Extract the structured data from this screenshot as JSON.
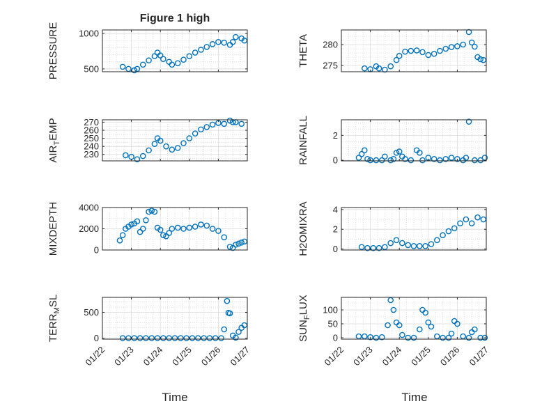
{
  "figure": {
    "title": "Figure 1 high"
  },
  "chart_data": [
    {
      "type": "scatter",
      "ylabel": "PRESSURE",
      "xlim": [
        "01/22",
        "01/27"
      ],
      "xtick_labels": [
        "01/22",
        "01/23",
        "01/24",
        "01/25",
        "01/26",
        "01/27"
      ],
      "ylim": [
        460,
        1050
      ],
      "yticks": [
        500,
        1000
      ],
      "ytick_labels": [
        "500",
        "1000"
      ],
      "minor_yticks": [
        600,
        700,
        800,
        900
      ],
      "grid": true,
      "marker_color": "#0072BD",
      "series": [
        {
          "x": [
            0.7,
            0.9,
            1.1,
            1.2,
            1.4,
            1.6,
            1.8,
            1.9,
            2.0,
            2.1,
            2.3,
            2.4,
            2.6,
            2.8,
            3.0,
            3.2,
            3.4,
            3.6,
            3.8,
            4.0,
            4.2,
            4.4,
            4.5,
            4.6,
            4.8,
            4.9
          ],
          "y": [
            530,
            500,
            480,
            500,
            560,
            620,
            680,
            730,
            690,
            640,
            600,
            560,
            580,
            630,
            680,
            730,
            770,
            810,
            850,
            880,
            870,
            840,
            880,
            950,
            930,
            900
          ]
        }
      ]
    },
    {
      "type": "scatter",
      "ylabel": "THETA",
      "xlim": [
        "01/22",
        "01/27"
      ],
      "xtick_labels": [
        "01/22",
        "01/23",
        "01/24",
        "01/25",
        "01/26",
        "01/27"
      ],
      "ylim": [
        273.5,
        283.5
      ],
      "yticks": [
        275,
        280
      ],
      "ytick_labels": [
        "275",
        "280"
      ],
      "minor_yticks": [
        276,
        277,
        278,
        279,
        281,
        282
      ],
      "grid": true,
      "marker_color": "#0072BD",
      "series": [
        {
          "x": [
            0.8,
            1.0,
            1.2,
            1.3,
            1.5,
            1.7,
            1.9,
            2.0,
            2.2,
            2.4,
            2.6,
            2.8,
            3.0,
            3.2,
            3.4,
            3.6,
            3.8,
            4.0,
            4.2,
            4.4,
            4.5,
            4.6,
            4.7,
            4.8,
            4.9
          ],
          "y": [
            274.3,
            274.1,
            274.8,
            274.3,
            274.0,
            274.8,
            276.3,
            277.3,
            278.3,
            278.5,
            278.6,
            278.2,
            277.5,
            277.8,
            278.5,
            279.0,
            279.4,
            279.6,
            280.0,
            283.0,
            280.5,
            279.5,
            277.0,
            276.5,
            276.3
          ]
        }
      ]
    },
    {
      "type": "scatter",
      "ylabel": "AIR_TEMP",
      "ylabel_display": {
        "base": "AIR",
        "sub": "T",
        "rest": "EMP"
      },
      "xlim": [
        "01/22",
        "01/27"
      ],
      "xtick_labels": [
        "01/22",
        "01/23",
        "01/24",
        "01/25",
        "01/26",
        "01/27"
      ],
      "ylim": [
        222,
        273
      ],
      "yticks": [
        230,
        240,
        250,
        260,
        270
      ],
      "ytick_labels": [
        "230",
        "240",
        "250",
        "260",
        "270"
      ],
      "minor_yticks": [
        225,
        235,
        245,
        255,
        265
      ],
      "grid": true,
      "marker_color": "#0072BD",
      "series": [
        {
          "x": [
            0.8,
            1.0,
            1.2,
            1.4,
            1.6,
            1.8,
            1.9,
            2.0,
            2.2,
            2.4,
            2.6,
            2.8,
            3.0,
            3.2,
            3.4,
            3.6,
            3.8,
            4.0,
            4.2,
            4.4,
            4.5,
            4.6,
            4.8
          ],
          "y": [
            229,
            227,
            224,
            228,
            235,
            243,
            250,
            247,
            240,
            236,
            238,
            244,
            250,
            256,
            261,
            264,
            267,
            269,
            268,
            272,
            270,
            270,
            268
          ]
        }
      ]
    },
    {
      "type": "scatter",
      "ylabel": "RAINFALL",
      "xlim": [
        "01/22",
        "01/27"
      ],
      "xtick_labels": [
        "01/22",
        "01/23",
        "01/24",
        "01/25",
        "01/26",
        "01/27"
      ],
      "ylim": [
        -0.05,
        3.25
      ],
      "yticks": [
        0,
        2
      ],
      "ytick_labels": [
        "0",
        "2"
      ],
      "minor_yticks": [
        0.5,
        1.0,
        1.5,
        2.5,
        3.0
      ],
      "grid": true,
      "marker_color": "#0072BD",
      "series": [
        {
          "x": [
            0.6,
            0.7,
            0.8,
            0.9,
            1.0,
            1.2,
            1.4,
            1.5,
            1.7,
            1.8,
            1.9,
            2.0,
            2.1,
            2.2,
            2.4,
            2.6,
            2.7,
            2.8,
            3.0,
            3.2,
            3.4,
            3.6,
            3.8,
            4.0,
            4.2,
            4.3,
            4.4,
            4.6,
            4.8,
            4.95
          ],
          "y": [
            0.2,
            0.5,
            0.8,
            0.1,
            0.0,
            0.0,
            0.0,
            0.3,
            0.0,
            0.1,
            0.6,
            0.7,
            0.3,
            0.1,
            0.0,
            0.8,
            0.6,
            0.0,
            0.2,
            0.1,
            0.0,
            0.1,
            0.2,
            0.1,
            0.0,
            0.2,
            3.1,
            0.0,
            0.0,
            0.2
          ]
        }
      ]
    },
    {
      "type": "scatter",
      "ylabel": "MIXDEPTH",
      "xlim": [
        "01/22",
        "01/27"
      ],
      "xtick_labels": [
        "01/22",
        "01/23",
        "01/24",
        "01/25",
        "01/26",
        "01/27"
      ],
      "ylim": [
        0,
        4000
      ],
      "yticks": [
        0,
        2000,
        4000
      ],
      "ytick_labels": [
        "0",
        "2000",
        "4000"
      ],
      "minor_yticks": [
        1000,
        3000
      ],
      "grid": true,
      "marker_color": "#0072BD",
      "series": [
        {
          "x": [
            0.6,
            0.7,
            0.8,
            0.9,
            1.0,
            1.1,
            1.2,
            1.3,
            1.4,
            1.5,
            1.6,
            1.7,
            1.8,
            1.9,
            2.0,
            2.1,
            2.2,
            2.3,
            2.4,
            2.6,
            2.8,
            3.0,
            3.2,
            3.4,
            3.6,
            3.8,
            4.0,
            4.2,
            4.4,
            4.5,
            4.6,
            4.7,
            4.8,
            4.9
          ],
          "y": [
            900,
            1400,
            2000,
            2200,
            2400,
            2500,
            2700,
            1700,
            2000,
            2800,
            3600,
            3700,
            3600,
            2100,
            1900,
            1400,
            1300,
            1600,
            2000,
            2100,
            2000,
            2100,
            2200,
            2400,
            2300,
            2000,
            1800,
            1200,
            300,
            200,
            500,
            600,
            700,
            800
          ]
        }
      ]
    },
    {
      "type": "scatter",
      "ylabel": "H2OMIXRA",
      "xlim": [
        "01/22",
        "01/27"
      ],
      "xtick_labels": [
        "01/22",
        "01/23",
        "01/24",
        "01/25",
        "01/26",
        "01/27"
      ],
      "ylim": [
        -0.1,
        4.2
      ],
      "yticks": [
        0,
        2,
        4
      ],
      "ytick_labels": [
        "0",
        "2",
        "4"
      ],
      "minor_yticks": [
        1,
        3
      ],
      "grid": true,
      "marker_color": "#0072BD",
      "series": [
        {
          "x": [
            0.7,
            0.9,
            1.1,
            1.3,
            1.5,
            1.7,
            1.9,
            2.1,
            2.3,
            2.5,
            2.7,
            2.9,
            3.1,
            3.3,
            3.5,
            3.7,
            3.9,
            4.1,
            4.3,
            4.5,
            4.7,
            4.9
          ],
          "y": [
            0.2,
            0.1,
            0.1,
            0.1,
            0.2,
            0.6,
            0.9,
            0.6,
            0.4,
            0.3,
            0.3,
            0.3,
            0.5,
            0.9,
            1.4,
            1.8,
            2.1,
            2.6,
            3.0,
            2.6,
            3.2,
            3.0
          ]
        }
      ]
    },
    {
      "type": "scatter",
      "ylabel": "TERR_MSL",
      "ylabel_display": {
        "base": "TERR",
        "sub": "M",
        "rest": "SL"
      },
      "xlim": [
        "01/22",
        "01/27"
      ],
      "xtick_labels": [
        "01/22",
        "01/23",
        "01/24",
        "01/25",
        "01/26",
        "01/27"
      ],
      "ylim": [
        -20,
        790
      ],
      "yticks": [
        0,
        500
      ],
      "ytick_labels": [
        "0",
        "500"
      ],
      "minor_yticks": [
        100,
        200,
        300,
        400,
        600,
        700
      ],
      "grid": true,
      "marker_color": "#0072BD",
      "series": [
        {
          "x": [
            0.7,
            0.9,
            1.1,
            1.3,
            1.5,
            1.7,
            1.9,
            2.1,
            2.3,
            2.5,
            2.7,
            2.9,
            3.1,
            3.3,
            3.5,
            3.7,
            3.9,
            4.1,
            4.2,
            4.3,
            4.35,
            4.4,
            4.5,
            4.6,
            4.7,
            4.8,
            4.9
          ],
          "y": [
            0,
            0,
            0,
            0,
            0,
            0,
            0,
            0,
            0,
            0,
            0,
            0,
            0,
            0,
            0,
            0,
            0,
            0,
            170,
            720,
            490,
            480,
            50,
            10,
            120,
            200,
            250
          ]
        }
      ]
    },
    {
      "type": "scatter",
      "ylabel": "SUN_FLUX",
      "ylabel_display": {
        "base": "SUN",
        "sub": "F",
        "rest": "LUX"
      },
      "xlim": [
        "01/22",
        "01/27"
      ],
      "xtick_labels": [
        "01/22",
        "01/23",
        "01/24",
        "01/25",
        "01/26",
        "01/27"
      ],
      "ylim": [
        -5,
        145
      ],
      "yticks": [
        0,
        50,
        100
      ],
      "ytick_labels": [
        "0",
        "50",
        "100"
      ],
      "minor_yticks": [
        25,
        75,
        125
      ],
      "grid": true,
      "marker_color": "#0072BD",
      "series": [
        {
          "x": [
            0.6,
            0.8,
            1.0,
            1.2,
            1.4,
            1.6,
            1.7,
            1.8,
            1.9,
            2.0,
            2.1,
            2.3,
            2.5,
            2.7,
            2.8,
            2.9,
            3.0,
            3.1,
            3.3,
            3.5,
            3.7,
            3.8,
            3.9,
            4.0,
            4.2,
            4.4,
            4.5,
            4.6,
            4.8,
            4.95
          ],
          "y": [
            5,
            5,
            2,
            0,
            2,
            45,
            135,
            100,
            55,
            45,
            10,
            0,
            0,
            30,
            100,
            90,
            55,
            40,
            5,
            0,
            0,
            15,
            60,
            50,
            5,
            0,
            20,
            30,
            0,
            0
          ]
        }
      ]
    }
  ],
  "xlabels": {
    "left": "Time",
    "right": "Time"
  }
}
